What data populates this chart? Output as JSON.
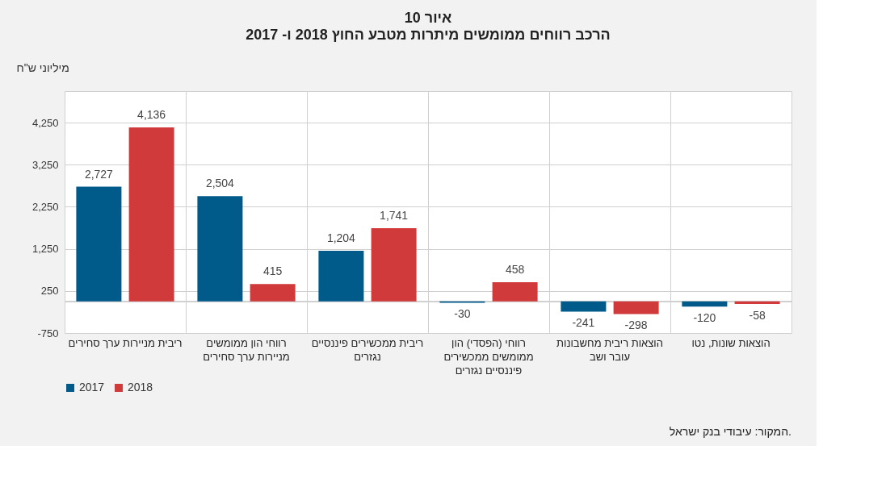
{
  "chart_data": {
    "type": "bar",
    "title": "איור 10",
    "subtitle": "הרכב רווחים ממומשים מיתרות מטבע החוץ 2018 ו- 2017",
    "ylabel": "מיליוני ש\"ח",
    "categories": [
      "ריבית מניירות ערך סחירים",
      "רווחי הון ממומשים מניירות ערך סחירים",
      "ריבית ממכשירים פיננסיים נגזרים",
      "רווחי (הפסדי) הון ממומשים ממכשירים פיננסיים נגזרים",
      "הוצאות ריבית מחשבונות עובר ושב",
      "הוצאות שונות, נטו"
    ],
    "series": [
      {
        "name": "2017",
        "color": "#005b8a",
        "values": [
          2727,
          2504,
          1204,
          -30,
          -241,
          -120
        ],
        "value_labels": [
          "2,727",
          "2,504",
          "1,204",
          "-30",
          "-241",
          "-120"
        ]
      },
      {
        "name": "2018",
        "color": "#d13a3a",
        "values": [
          4136,
          415,
          1741,
          458,
          -298,
          -58
        ],
        "value_labels": [
          "4,136",
          "415",
          "1,741",
          "458",
          "-298",
          "-58"
        ]
      }
    ],
    "ylim": [
      -750,
      5000
    ],
    "yticks": [
      {
        "value": -750,
        "label": "-750"
      },
      250,
      {
        "value": 1250,
        "label": "1,250"
      },
      {
        "value": 2250,
        "label": "2,250"
      },
      {
        "value": 3250,
        "label": "3,250"
      },
      {
        "value": 4250,
        "label": "4,250"
      }
    ],
    "grid": true,
    "legend": "bottom",
    "annotations": [
      "המקור: עיבודי בנק ישראל."
    ]
  }
}
